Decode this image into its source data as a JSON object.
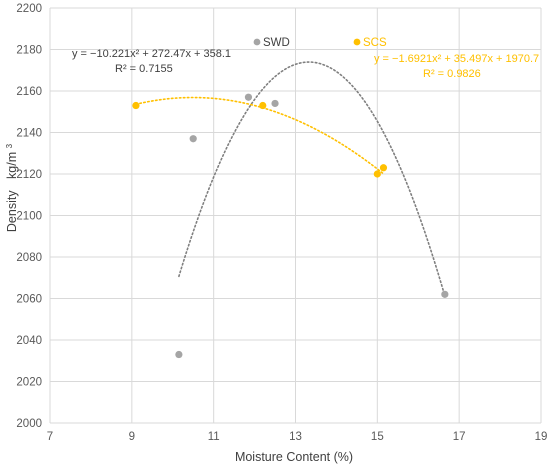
{
  "chart_data": {
    "type": "scatter",
    "xlabel": "Moisture Content (%)",
    "ylabel_main": "Density",
    "ylabel_unit": "kg/m",
    "ylabel_unit_sup": "3",
    "xlim": [
      7,
      19
    ],
    "ylim": [
      2000,
      2200
    ],
    "xticks": [
      7,
      9,
      11,
      13,
      15,
      17,
      19
    ],
    "yticks": [
      2000,
      2020,
      2040,
      2060,
      2080,
      2100,
      2120,
      2140,
      2160,
      2180,
      2200
    ],
    "grid": {
      "x": true,
      "y": true,
      "color": "#d9d9d9"
    },
    "series": [
      {
        "name": "SWD",
        "color": "#a5a5a5",
        "points": [
          {
            "x": 10.15,
            "y": 2033
          },
          {
            "x": 10.5,
            "y": 2137
          },
          {
            "x": 11.85,
            "y": 2157
          },
          {
            "x": 12.5,
            "y": 2154
          },
          {
            "x": 16.65,
            "y": 2062
          }
        ],
        "trend": {
          "a": -10.221,
          "b": 272.47,
          "c": 358.1,
          "x_from": 10.15,
          "x_to": 16.65,
          "color": "#7f7f7f"
        },
        "equation": "y = −10.221x² + 272.47x + 358.1",
        "r2": "R² = 0.7155"
      },
      {
        "name": "SCS",
        "color": "#ffc000",
        "points": [
          {
            "x": 9.1,
            "y": 2153
          },
          {
            "x": 12.2,
            "y": 2153
          },
          {
            "x": 15.0,
            "y": 2120
          },
          {
            "x": 15.15,
            "y": 2123
          }
        ],
        "trend": {
          "a": -1.6921,
          "b": 35.497,
          "c": 1970.7,
          "x_from": 9.1,
          "x_to": 15.15,
          "color": "#ffc000"
        },
        "equation": "y = −1.6921x² + 35.497x + 1970.7",
        "r2": "R² = 0.9826"
      }
    ]
  }
}
